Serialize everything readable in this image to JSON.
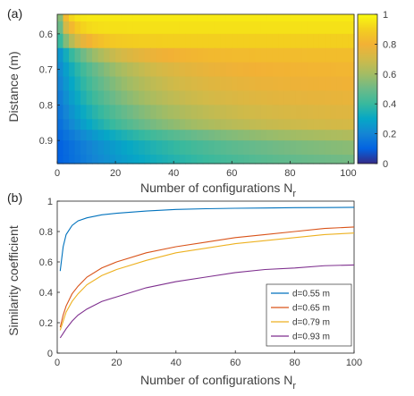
{
  "chart_data": [
    {
      "panel_label": "(a)",
      "type": "heatmap",
      "xlabel": "Number of configurations N",
      "xlabel_sub": "r",
      "ylabel": "Distance (m)",
      "xlim": [
        0,
        102
      ],
      "ylim": [
        0.545,
        0.965
      ],
      "y_reversed": true,
      "x_ticks": [
        0,
        20,
        40,
        60,
        80,
        100
      ],
      "y_ticks": [
        0.6,
        0.7,
        0.8,
        0.9
      ],
      "x_tick_labels": [
        "0",
        "20",
        "40",
        "60",
        "80",
        "100"
      ],
      "y_tick_labels": [
        "0.6",
        "0.7",
        "0.8",
        "0.9"
      ],
      "colorbar": {
        "min": 0,
        "max": 1,
        "ticks": [
          0,
          0.2,
          0.4,
          0.6,
          0.8,
          1
        ],
        "tick_labels": [
          "0",
          "0.2",
          "0.4",
          "0.6",
          "0.8",
          "1"
        ],
        "colormap": "parula"
      },
      "rows": [
        {
          "d": 0.55,
          "start": 0.55,
          "end": 0.96,
          "tau": 1.8
        },
        {
          "d": 0.58,
          "start": 0.5,
          "end": 0.94,
          "tau": 3
        },
        {
          "d": 0.62,
          "start": 0.4,
          "end": 0.9,
          "tau": 6
        },
        {
          "d": 0.66,
          "start": 0.25,
          "end": 0.84,
          "tau": 14
        },
        {
          "d": 0.7,
          "start": 0.22,
          "end": 0.82,
          "tau": 20
        },
        {
          "d": 0.74,
          "start": 0.2,
          "end": 0.8,
          "tau": 22
        },
        {
          "d": 0.78,
          "start": 0.18,
          "end": 0.78,
          "tau": 24
        },
        {
          "d": 0.82,
          "start": 0.16,
          "end": 0.76,
          "tau": 28
        },
        {
          "d": 0.86,
          "start": 0.14,
          "end": 0.74,
          "tau": 32
        },
        {
          "d": 0.88,
          "start": 0.12,
          "end": 0.68,
          "tau": 42
        },
        {
          "d": 0.92,
          "start": 0.1,
          "end": 0.62,
          "tau": 48
        },
        {
          "d": 0.96,
          "start": 0.1,
          "end": 0.58,
          "tau": 50
        }
      ]
    },
    {
      "panel_label": "(b)",
      "type": "line",
      "xlabel": "Number of configurations N",
      "xlabel_sub": "r",
      "ylabel": "Similarity coefficient",
      "xlim": [
        0,
        100
      ],
      "ylim": [
        0,
        1
      ],
      "x_ticks": [
        0,
        20,
        40,
        60,
        80,
        100
      ],
      "y_ticks": [
        0,
        0.2,
        0.4,
        0.6,
        0.8,
        1
      ],
      "x_tick_labels": [
        "0",
        "20",
        "40",
        "60",
        "80",
        "100"
      ],
      "y_tick_labels": [
        "0",
        "0.2",
        "0.4",
        "0.6",
        "0.8",
        "1"
      ],
      "legend_position": "bottom-right",
      "x": [
        1,
        2,
        3,
        5,
        7,
        10,
        15,
        20,
        30,
        40,
        50,
        60,
        70,
        80,
        90,
        100
      ],
      "series": [
        {
          "name": "d=0.55 m",
          "color": "#0072BD",
          "values": [
            0.54,
            0.7,
            0.78,
            0.84,
            0.87,
            0.89,
            0.91,
            0.92,
            0.935,
            0.945,
            0.95,
            0.953,
            0.955,
            0.957,
            0.958,
            0.959
          ]
        },
        {
          "name": "d=0.65 m",
          "color": "#D95319",
          "values": [
            0.17,
            0.25,
            0.31,
            0.39,
            0.44,
            0.5,
            0.56,
            0.6,
            0.66,
            0.7,
            0.73,
            0.76,
            0.78,
            0.8,
            0.82,
            0.83
          ]
        },
        {
          "name": "d=0.79 m",
          "color": "#EDB120",
          "values": [
            0.15,
            0.21,
            0.27,
            0.34,
            0.39,
            0.45,
            0.51,
            0.55,
            0.61,
            0.66,
            0.69,
            0.72,
            0.74,
            0.76,
            0.78,
            0.79
          ]
        },
        {
          "name": "d=0.93 m",
          "color": "#7E2F8E",
          "values": [
            0.1,
            0.13,
            0.16,
            0.21,
            0.25,
            0.29,
            0.34,
            0.37,
            0.43,
            0.47,
            0.5,
            0.53,
            0.55,
            0.56,
            0.575,
            0.58
          ]
        }
      ]
    }
  ]
}
